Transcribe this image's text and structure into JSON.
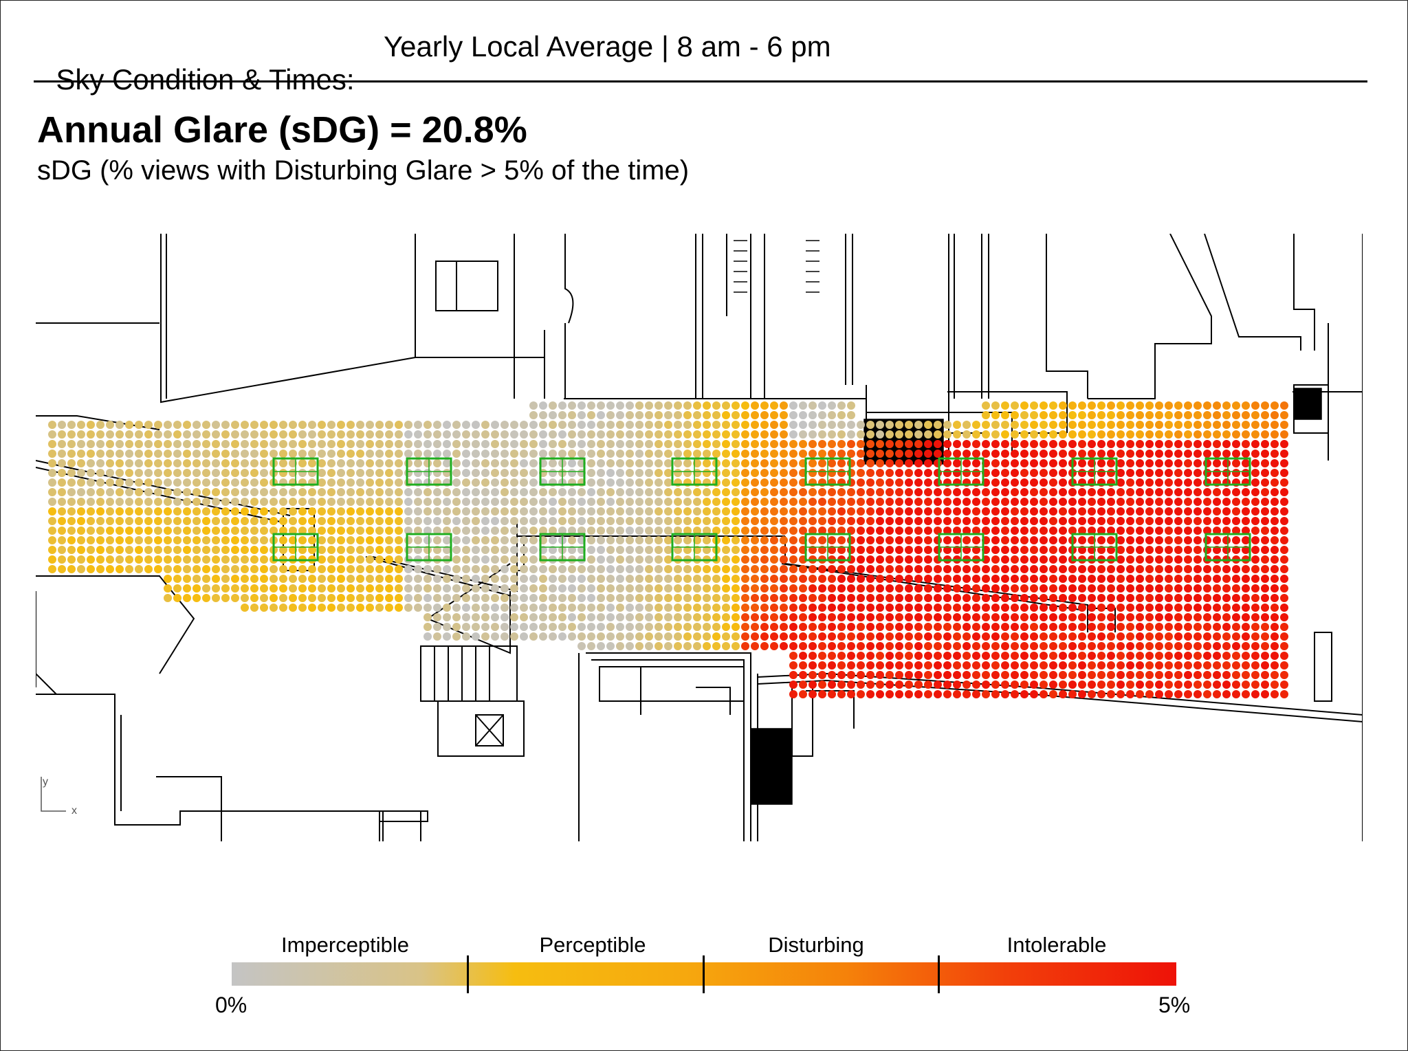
{
  "header": {
    "label": "Sky Condition & Times:",
    "value": "Yearly Local Average | 8 am - 6 pm"
  },
  "title": "Annual Glare (sDG) = 20.8%",
  "subtitle": "sDG (% views with Disturbing Glare > 5% of the time)",
  "plan": {
    "axis_y": "y",
    "axis_x": "x",
    "colors": {
      "walls": "#000000",
      "skylight_frames": "#1fae1f",
      "imperceptible": "#c4c4c4",
      "perceptible": "#f6bd10",
      "disturbing": "#f5820a",
      "intolerable": "#ee1208"
    }
  },
  "legend": {
    "categories": [
      "Imperceptible",
      "Perceptible",
      "Disturbing",
      "Intolerable"
    ],
    "min_label": "0%",
    "max_label": "5%"
  }
}
